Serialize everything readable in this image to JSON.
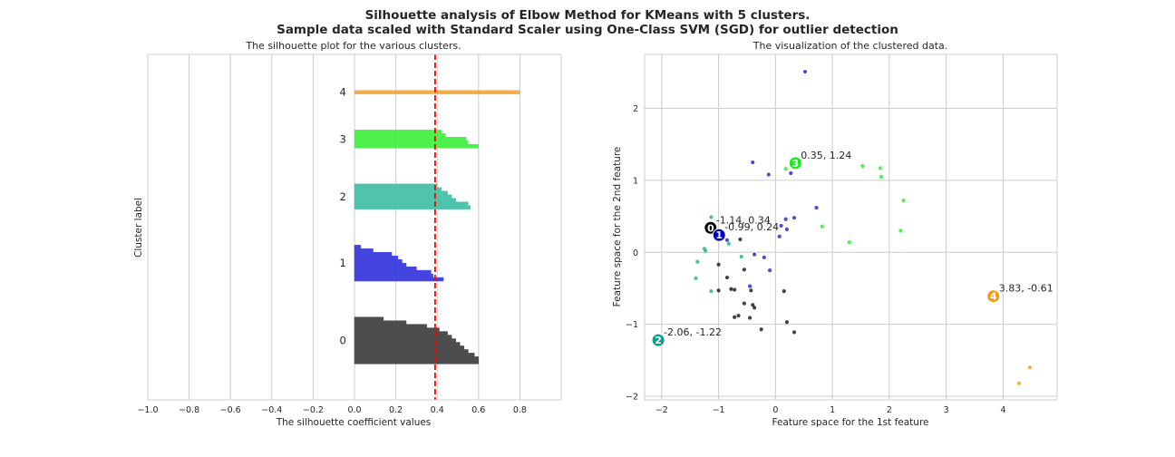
{
  "figure": {
    "title_line1": "Silhouette analysis of Elbow Method for KMeans with 5 clusters.",
    "title_line2": "Sample data scaled with Standard Scaler using One-Class SVM (SGD) for outlier detection"
  },
  "chart_data": [
    {
      "type": "area",
      "title": "The silhouette plot for the various clusters.",
      "xlabel": "The silhouette coefficient values",
      "ylabel": "Cluster label",
      "xlim": [
        -1.0,
        1.0
      ],
      "xticks": [
        -1.0,
        -0.8,
        -0.6,
        -0.4,
        -0.2,
        0.0,
        0.2,
        0.4,
        0.6,
        0.8
      ],
      "xtick_labels": [
        "−1.0",
        "−0.8",
        "−0.6",
        "−0.4",
        "−0.2",
        "0.0",
        "0.2",
        "0.4",
        "0.6",
        "0.8"
      ],
      "yticks": [],
      "grid": true,
      "average_silhouette": 0.39,
      "average_line_color": "#ff0000",
      "clusters": [
        {
          "label": "0",
          "color": "#444444",
          "y_start": 10,
          "y_end": 23,
          "values": [
            0.6,
            0.6,
            0.58,
            0.55,
            0.53,
            0.51,
            0.49,
            0.47,
            0.45,
            0.41,
            0.35,
            0.25,
            0.14
          ]
        },
        {
          "label": "1",
          "color": "#3b3bdf",
          "y_start": 33,
          "y_end": 43,
          "values": [
            0.43,
            0.38,
            0.37,
            0.3,
            0.25,
            0.23,
            0.21,
            0.18,
            0.09,
            0.03
          ]
        },
        {
          "label": "2",
          "color": "#46c1a6",
          "y_start": 53,
          "y_end": 60,
          "values": [
            0.56,
            0.55,
            0.49,
            0.47,
            0.45,
            0.42,
            0.4
          ]
        },
        {
          "label": "3",
          "color": "#44f044",
          "y_start": 70,
          "y_end": 75,
          "values": [
            0.6,
            0.55,
            0.54,
            0.44,
            0.42
          ]
        },
        {
          "label": "4",
          "color": "#f5a742",
          "y_start": 85,
          "y_end": 86,
          "values": [
            0.8
          ]
        }
      ],
      "ylim": [
        0,
        96
      ]
    },
    {
      "type": "scatter",
      "title": "The visualization of the clustered data.",
      "xlabel": "Feature space for the 1st feature",
      "ylabel": "Feature space for the 2nd feature",
      "xlim": [
        -2.3,
        4.95
      ],
      "ylim": [
        -2.05,
        2.75
      ],
      "xticks": [
        -2,
        -1,
        0,
        1,
        2,
        3,
        4
      ],
      "xtick_labels": [
        "−2",
        "−1",
        "0",
        "1",
        "2",
        "3",
        "4"
      ],
      "yticks": [
        -2,
        -1,
        0,
        1,
        2
      ],
      "ytick_labels": [
        "−2",
        "−1",
        "0",
        "1",
        "2"
      ],
      "grid": true,
      "series": [
        {
          "cluster": "0",
          "color": "#222222",
          "points": [
            [
              -0.62,
              0.18
            ],
            [
              -1.0,
              -0.17
            ],
            [
              -0.85,
              -0.35
            ],
            [
              -0.55,
              -0.24
            ],
            [
              -0.78,
              -0.51
            ],
            [
              -1.0,
              -0.53
            ],
            [
              -0.72,
              -0.52
            ],
            [
              -0.55,
              -0.71
            ],
            [
              -0.43,
              -0.53
            ],
            [
              -0.4,
              -0.73
            ],
            [
              -0.37,
              -0.77
            ],
            [
              -0.72,
              -0.9
            ],
            [
              -0.65,
              -0.88
            ],
            [
              -0.45,
              -0.91
            ],
            [
              -0.25,
              -1.07
            ],
            [
              0.15,
              -0.54
            ],
            [
              0.2,
              -0.97
            ],
            [
              0.33,
              -1.11
            ]
          ]
        },
        {
          "cluster": "1",
          "color": "#2b2bd6",
          "points": [
            [
              0.52,
              2.51
            ],
            [
              -0.4,
              1.25
            ],
            [
              -0.12,
              1.08
            ],
            [
              0.27,
              1.1
            ],
            [
              0.72,
              0.62
            ],
            [
              0.33,
              0.48
            ],
            [
              0.18,
              0.46
            ],
            [
              0.1,
              0.37
            ],
            [
              0.2,
              0.32
            ],
            [
              0.07,
              0.22
            ],
            [
              -0.85,
              0.17
            ],
            [
              -0.37,
              -0.03
            ],
            [
              -0.2,
              -0.07
            ],
            [
              -0.1,
              -0.25
            ],
            [
              -0.45,
              -0.47
            ]
          ]
        },
        {
          "cluster": "2",
          "color": "#27b88a",
          "points": [
            [
              -1.13,
              0.49
            ],
            [
              -0.97,
              0.25
            ],
            [
              -0.82,
              0.12
            ],
            [
              -1.25,
              0.05
            ],
            [
              -1.23,
              0.02
            ],
            [
              -1.37,
              -0.13
            ],
            [
              -0.6,
              -0.06
            ],
            [
              -1.4,
              -0.36
            ],
            [
              -1.13,
              -0.54
            ]
          ]
        },
        {
          "cluster": "3",
          "color": "#2ff02f",
          "points": [
            [
              0.18,
              1.16
            ],
            [
              1.53,
              1.2
            ],
            [
              1.84,
              1.17
            ],
            [
              1.86,
              1.05
            ],
            [
              2.25,
              0.72
            ],
            [
              0.82,
              0.36
            ],
            [
              2.2,
              0.3
            ],
            [
              1.3,
              0.14
            ]
          ]
        },
        {
          "cluster": "4",
          "color": "#f5a020",
          "points": [
            [
              4.47,
              -1.6
            ],
            [
              4.28,
              -1.82
            ]
          ]
        }
      ],
      "centers": [
        {
          "label": "0",
          "x": -1.14,
          "y": 0.34,
          "color": "#000000",
          "annotation": "-1.14, 0.34"
        },
        {
          "label": "1",
          "x": -0.99,
          "y": 0.24,
          "color": "#0000c8",
          "annotation": "-0.99, 0.24"
        },
        {
          "label": "2",
          "x": -2.06,
          "y": -1.22,
          "color": "#0e9e88",
          "annotation": "-2.06, -1.22"
        },
        {
          "label": "3",
          "x": 0.35,
          "y": 1.24,
          "color": "#14ee14",
          "annotation": "0.35, 1.24"
        },
        {
          "label": "4",
          "x": 3.83,
          "y": -0.61,
          "color": "#f39c12",
          "annotation": "3.83, -0.61"
        }
      ]
    }
  ]
}
